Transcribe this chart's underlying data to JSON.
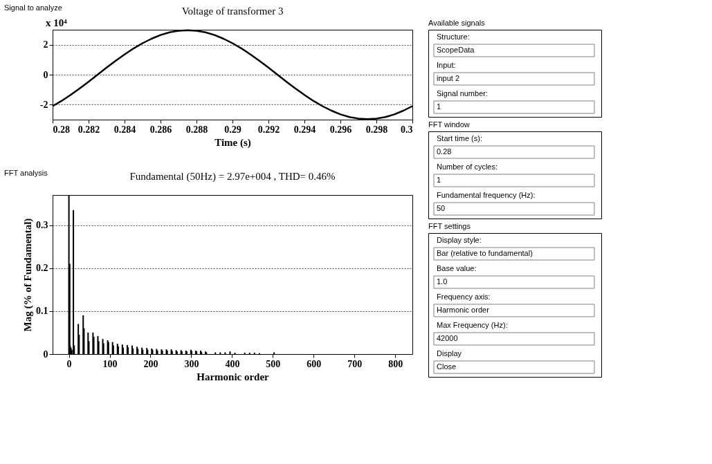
{
  "chart_data": [
    {
      "type": "line",
      "subtitle": "Signal to analyze",
      "title": "Voltage of transformer 3",
      "xlabel": "Time (s)",
      "annotations": [
        "x 10⁴"
      ],
      "x": [
        0.28,
        0.2805,
        0.281,
        0.2815,
        0.282,
        0.2825,
        0.283,
        0.2835,
        0.284,
        0.2845,
        0.285,
        0.2855,
        0.286,
        0.2865,
        0.287,
        0.2875,
        0.288,
        0.2885,
        0.289,
        0.2895,
        0.29,
        0.2905,
        0.291,
        0.2915,
        0.292,
        0.2925,
        0.293,
        0.2935,
        0.294,
        0.2945,
        0.295,
        0.2955,
        0.296,
        0.2965,
        0.297,
        0.2975,
        0.298,
        0.2985,
        0.299,
        0.2995,
        0.3
      ],
      "series": [
        {
          "color": "#000000",
          "values": [
            -2.1,
            -1.75,
            -1.35,
            -0.92,
            -0.47,
            0,
            0.47,
            0.92,
            1.35,
            1.75,
            2.1,
            2.4,
            2.65,
            2.83,
            2.93,
            2.97,
            2.93,
            2.83,
            2.65,
            2.4,
            2.1,
            1.75,
            1.35,
            0.92,
            0.47,
            0,
            -0.47,
            -0.92,
            -1.35,
            -1.75,
            -2.1,
            -2.4,
            -2.65,
            -2.83,
            -2.93,
            -2.97,
            -2.93,
            -2.83,
            -2.65,
            -2.4,
            -2.1
          ]
        }
      ],
      "xlim": [
        0.28,
        0.3
      ],
      "xticks": [
        0.28,
        0.282,
        0.284,
        0.286,
        0.288,
        0.29,
        0.292,
        0.294,
        0.296,
        0.298,
        0.3
      ],
      "ylim": [
        -3,
        3
      ],
      "yticks": [
        -2,
        0,
        2
      ],
      "grid": "y",
      "line_style": "solid",
      "marker": "none",
      "legend": false
    },
    {
      "type": "bar",
      "subtitle": "FFT analysis",
      "title": "Fundamental (50Hz) = 2.97e+004 , THD= 0.46%",
      "xlabel": "Harmonic order",
      "ylabel": "Mag (% of Fundamental)",
      "x": [
        0,
        2,
        3,
        5,
        7,
        11,
        13,
        23,
        25,
        35,
        37,
        47,
        49,
        59,
        61,
        71,
        73,
        83,
        85,
        95,
        97,
        107,
        109,
        119,
        121,
        131,
        133,
        143,
        145,
        155,
        157,
        167,
        169,
        179,
        181,
        191,
        193,
        203,
        205,
        215,
        217,
        227,
        229,
        239,
        241,
        251,
        253,
        263,
        265,
        275,
        277,
        287,
        289,
        299,
        301,
        311,
        313,
        323,
        325,
        335,
        337,
        359,
        371,
        383,
        395,
        407,
        431,
        443,
        455,
        467,
        503
      ],
      "series": [
        {
          "color": "#000000",
          "values": [
            0.37,
            0.21,
            0.02,
            0.015,
            0.01,
            0.335,
            0.02,
            0.07,
            0.045,
            0.09,
            0.06,
            0.05,
            0.03,
            0.05,
            0.04,
            0.042,
            0.03,
            0.035,
            0.025,
            0.032,
            0.028,
            0.028,
            0.02,
            0.024,
            0.018,
            0.022,
            0.015,
            0.021,
            0.016,
            0.02,
            0.013,
            0.017,
            0.012,
            0.015,
            0.01,
            0.014,
            0.01,
            0.013,
            0.01,
            0.012,
            0.008,
            0.011,
            0.008,
            0.011,
            0.008,
            0.011,
            0.007,
            0.009,
            0.006,
            0.009,
            0.006,
            0.008,
            0.006,
            0.01,
            0.007,
            0.008,
            0.006,
            0.008,
            0.005,
            0.006,
            0.004,
            0.004,
            0.004,
            0.004,
            0.006,
            0.003,
            0.003,
            0.003,
            0.003,
            0.002,
            0.004
          ]
        }
      ],
      "xlim": [
        -40,
        842
      ],
      "xticks": [
        0,
        100,
        200,
        300,
        400,
        500,
        600,
        700,
        800
      ],
      "ylim": [
        0,
        0.37
      ],
      "yticks": [
        0,
        0.1,
        0.2,
        0.3
      ],
      "grid": "y",
      "legend": false
    },
    {
      "type": "other",
      "title": "Available signals",
      "annotations": [
        "Structure:",
        "ScopeData",
        "Input:",
        "input 2",
        "Signal number:",
        "1"
      ]
    },
    {
      "type": "other",
      "title": "FFT window",
      "annotations": [
        "Start time (s):",
        "0.28",
        "Number of cycles:",
        "1",
        "Fundamental frequency (Hz):",
        "50"
      ]
    },
    {
      "type": "other",
      "title": "FFT settings",
      "annotations": [
        "Display style:",
        "Bar (relative to fundamental)",
        "Base value:",
        "1.0",
        "Frequency axis:",
        "Harmonic order",
        "Max Frequency (Hz):",
        "42000",
        "Display",
        "Close"
      ]
    }
  ]
}
